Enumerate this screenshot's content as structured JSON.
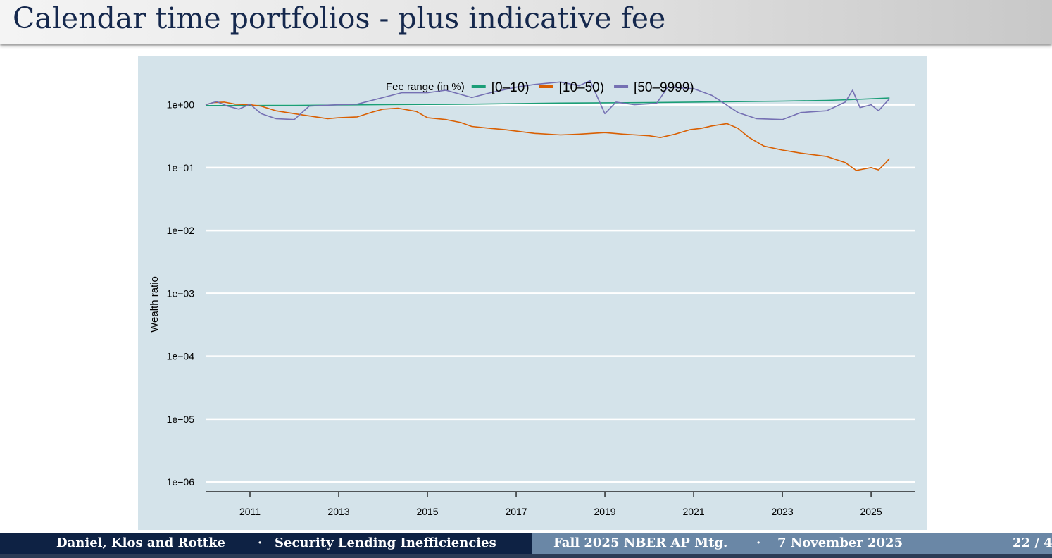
{
  "slide": {
    "title": "Calendar time portfolios - plus indicative fee"
  },
  "footer": {
    "authors": "Daniel, Klos and Rottke",
    "sep1": "·",
    "talk_title": "Security Lending Inefficiencies",
    "venue": "Fall 2025 NBER AP Mtg.",
    "sep2": "·",
    "date": "7 November 2025",
    "page": "22 / 4"
  },
  "colors": {
    "panel_background": "#d4e3ea",
    "gridline": "#ffffff",
    "fee_0_10": "#1b9e77",
    "fee_10_50": "#d95f02",
    "fee_50_9999": "#7570b3"
  },
  "chart_data": {
    "type": "line",
    "title": "",
    "xlabel": "",
    "ylabel": "Wealth ratio",
    "y_scale": "log10",
    "ylim": [
      7e-07,
      3.5
    ],
    "xlim": [
      "2010-01-01",
      "2025-12-31"
    ],
    "x_ticks": [
      "2011",
      "2013",
      "2015",
      "2017",
      "2019",
      "2021",
      "2023",
      "2025"
    ],
    "y_ticks": [
      1,
      0.1,
      0.01,
      0.001,
      0.0001,
      1e-05,
      1e-06
    ],
    "y_tick_labels": [
      "1e+00",
      "1e−01",
      "1e−02",
      "1e−03",
      "1e−04",
      "1e−05",
      "1e−06"
    ],
    "grid": "horizontal major lines",
    "legend": {
      "position": "top",
      "title": "Fee range (in %)"
    },
    "series": [
      {
        "name": "[0–10)",
        "color": "#1b9e77",
        "points": [
          [
            "2010-01",
            0.97
          ],
          [
            "2011-01",
            0.975
          ],
          [
            "2012-01",
            0.98
          ],
          [
            "2013-01",
            0.99
          ],
          [
            "2014-01",
            1.0
          ],
          [
            "2015-01",
            1.01
          ],
          [
            "2016-01",
            1.02
          ],
          [
            "2017-01",
            1.04
          ],
          [
            "2018-01",
            1.06
          ],
          [
            "2019-01",
            1.07
          ],
          [
            "2020-01",
            1.08
          ],
          [
            "2021-01",
            1.1
          ],
          [
            "2022-01",
            1.12
          ],
          [
            "2023-01",
            1.14
          ],
          [
            "2024-01",
            1.17
          ],
          [
            "2024-07",
            1.2
          ],
          [
            "2025-01",
            1.24
          ],
          [
            "2025-06",
            1.28
          ]
        ]
      },
      {
        "name": "[10–50)",
        "color": "#d95f02",
        "points": [
          [
            "2010-01",
            1.0
          ],
          [
            "2010-03",
            1.08
          ],
          [
            "2010-06",
            1.1
          ],
          [
            "2010-09",
            1.02
          ],
          [
            "2011-01",
            1.0
          ],
          [
            "2011-04",
            0.95
          ],
          [
            "2011-08",
            0.8
          ],
          [
            "2012-01",
            0.72
          ],
          [
            "2012-06",
            0.65
          ],
          [
            "2012-10",
            0.6
          ],
          [
            "2013-01",
            0.62
          ],
          [
            "2013-06",
            0.64
          ],
          [
            "2013-10",
            0.76
          ],
          [
            "2014-01",
            0.85
          ],
          [
            "2014-05",
            0.88
          ],
          [
            "2014-10",
            0.78
          ],
          [
            "2015-01",
            0.62
          ],
          [
            "2015-06",
            0.58
          ],
          [
            "2015-10",
            0.52
          ],
          [
            "2016-01",
            0.45
          ],
          [
            "2016-06",
            0.42
          ],
          [
            "2016-10",
            0.4
          ],
          [
            "2017-01",
            0.38
          ],
          [
            "2017-06",
            0.35
          ],
          [
            "2018-01",
            0.33
          ],
          [
            "2018-06",
            0.34
          ],
          [
            "2019-01",
            0.36
          ],
          [
            "2019-06",
            0.34
          ],
          [
            "2020-01",
            0.32
          ],
          [
            "2020-04",
            0.3
          ],
          [
            "2020-08",
            0.34
          ],
          [
            "2020-12",
            0.4
          ],
          [
            "2021-03",
            0.42
          ],
          [
            "2021-06",
            0.46
          ],
          [
            "2021-10",
            0.5
          ],
          [
            "2022-01",
            0.42
          ],
          [
            "2022-04",
            0.3
          ],
          [
            "2022-08",
            0.22
          ],
          [
            "2023-01",
            0.19
          ],
          [
            "2023-06",
            0.17
          ],
          [
            "2024-01",
            0.15
          ],
          [
            "2024-06",
            0.12
          ],
          [
            "2024-09",
            0.09
          ],
          [
            "2025-01",
            0.1
          ],
          [
            "2025-03",
            0.092
          ],
          [
            "2025-05",
            0.12
          ],
          [
            "2025-06",
            0.14
          ]
        ]
      },
      {
        "name": "[50–9999)",
        "color": "#7570b3",
        "points": [
          [
            "2010-01",
            1.0
          ],
          [
            "2010-04",
            1.12
          ],
          [
            "2010-07",
            0.95
          ],
          [
            "2010-10",
            0.85
          ],
          [
            "2011-01",
            1.02
          ],
          [
            "2011-04",
            0.72
          ],
          [
            "2011-08",
            0.6
          ],
          [
            "2012-01",
            0.58
          ],
          [
            "2012-05",
            0.95
          ],
          [
            "2013-01",
            1.0
          ],
          [
            "2013-06",
            1.02
          ],
          [
            "2014-01",
            1.3
          ],
          [
            "2014-06",
            1.55
          ],
          [
            "2015-01",
            1.55
          ],
          [
            "2015-06",
            1.7
          ],
          [
            "2016-01",
            1.3
          ],
          [
            "2016-06",
            1.55
          ],
          [
            "2017-01",
            1.9
          ],
          [
            "2017-06",
            2.1
          ],
          [
            "2018-01",
            2.3
          ],
          [
            "2018-06",
            2.0
          ],
          [
            "2018-09",
            2.4
          ],
          [
            "2019-01",
            0.72
          ],
          [
            "2019-04",
            1.1
          ],
          [
            "2019-09",
            1.0
          ],
          [
            "2020-03",
            1.05
          ],
          [
            "2020-06",
            1.9
          ],
          [
            "2021-01",
            1.8
          ],
          [
            "2021-06",
            1.4
          ],
          [
            "2022-01",
            0.75
          ],
          [
            "2022-06",
            0.6
          ],
          [
            "2023-01",
            0.58
          ],
          [
            "2023-06",
            0.75
          ],
          [
            "2024-01",
            0.8
          ],
          [
            "2024-06",
            1.1
          ],
          [
            "2024-08",
            1.7
          ],
          [
            "2024-10",
            0.9
          ],
          [
            "2025-01",
            1.0
          ],
          [
            "2025-03",
            0.8
          ],
          [
            "2025-06",
            1.25
          ]
        ]
      }
    ]
  }
}
